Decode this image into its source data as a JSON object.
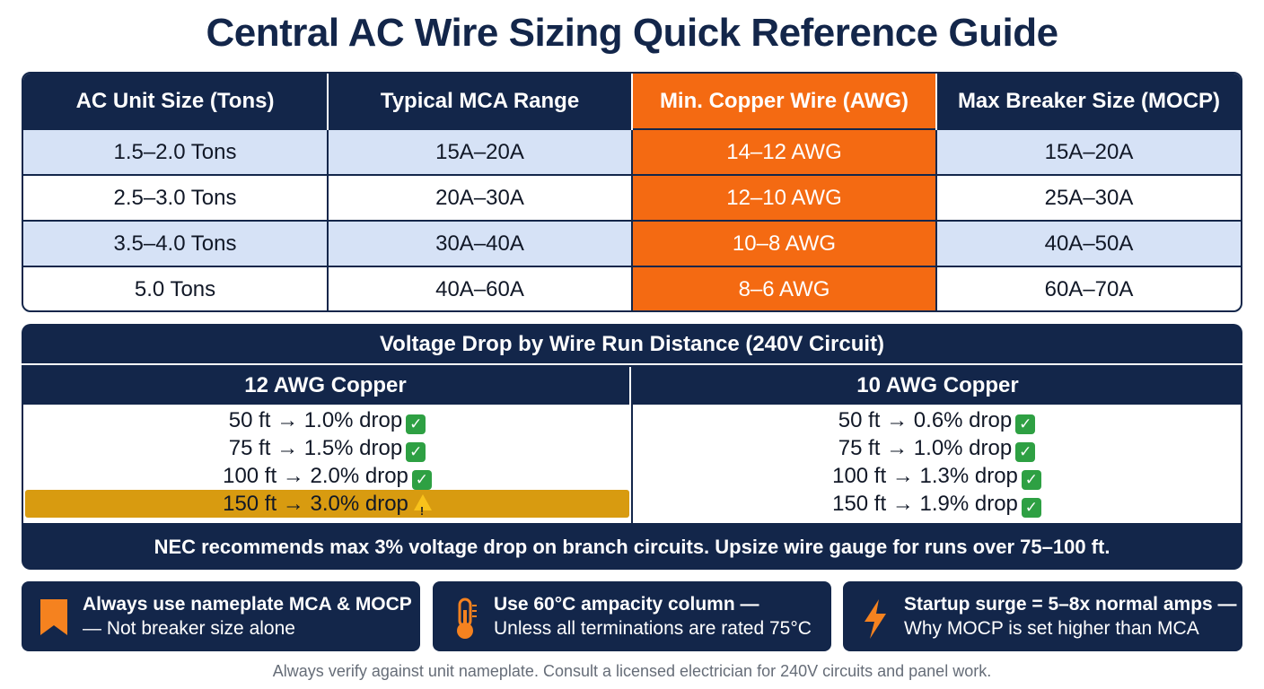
{
  "title": "Central AC Wire Sizing Quick Reference Guide",
  "sizing_table": {
    "headers": [
      "AC Unit Size (Tons)",
      "Typical MCA Range",
      "Min. Copper Wire (AWG)",
      "Max Breaker Size (MOCP)"
    ],
    "rows": [
      [
        "1.5–2.0 Tons",
        "15A–20A",
        "14–12 AWG",
        "15A–20A"
      ],
      [
        "2.5–3.0 Tons",
        "20A–30A",
        "12–10 AWG",
        "25A–30A"
      ],
      [
        "3.5–4.0 Tons",
        "30A–40A",
        "10–8 AWG",
        "40A–50A"
      ],
      [
        "5.0 Tons",
        "40A–60A",
        "8–6 AWG",
        "60A–70A"
      ]
    ],
    "highlight_color": "#f46a12"
  },
  "voltage_drop": {
    "title": "Voltage Drop by Wire Run Distance (240V Circuit)",
    "columns": [
      {
        "header": "12 AWG Copper",
        "rows": [
          {
            "text": "50 ft → 1.0% drop",
            "status": "check-icon"
          },
          {
            "text": "75 ft → 1.5% drop",
            "status": "check-icon"
          },
          {
            "text": "100 ft → 2.0% drop",
            "status": "check-icon"
          },
          {
            "text": "150 ft → 3.0% drop",
            "status": "warning-icon"
          }
        ]
      },
      {
        "header": "10 AWG Copper",
        "rows": [
          {
            "text": "50 ft → 0.6% drop",
            "status": "check-icon"
          },
          {
            "text": "75 ft → 1.0% drop",
            "status": "check-icon"
          },
          {
            "text": "100 ft → 1.3% drop",
            "status": "check-icon"
          },
          {
            "text": "150 ft → 1.9% drop",
            "status": "check-icon"
          }
        ]
      }
    ],
    "note": "NEC recommends max 3% voltage drop on branch circuits. Upsize wire gauge for runs over 75–100 ft.",
    "warning_color": "#d89b10"
  },
  "tips": [
    {
      "icon": "bookmark-icon",
      "title": "Always use nameplate MCA & MOCP",
      "subtitle": "— Not breaker size alone"
    },
    {
      "icon": "thermometer-icon",
      "title": "Use 60°C ampacity column —",
      "subtitle": "Unless all terminations are rated 75°C"
    },
    {
      "icon": "lightning-icon",
      "title": "Startup surge = 5–8x normal amps —",
      "subtitle": "Why MOCP is set higher than MCA"
    }
  ],
  "footer": "Always verify against unit nameplate. Consult a licensed electrician for 240V circuits and panel work."
}
